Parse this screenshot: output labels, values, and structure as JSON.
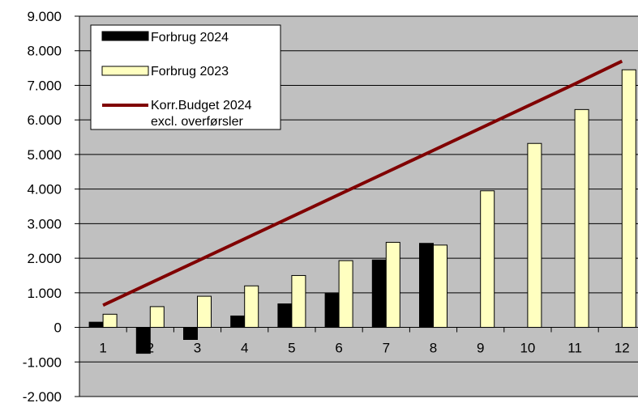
{
  "chart_data": {
    "type": "bar",
    "title": "",
    "xlabel": "",
    "ylabel": "",
    "categories": [
      "1",
      "2",
      "3",
      "4",
      "5",
      "6",
      "7",
      "8",
      "9",
      "10",
      "11",
      "12"
    ],
    "y_tick_labels": [
      "-2.000",
      "-1.000",
      "0",
      "1.000",
      "2.000",
      "3.000",
      "4.000",
      "5.000",
      "6.000",
      "7.000",
      "8.000",
      "9.000"
    ],
    "ylim": [
      -2000,
      9000
    ],
    "grid": true,
    "legend_position": "top-left",
    "plot_background": "#c0c0c0",
    "series": [
      {
        "name": "Forbrug 2024",
        "type": "bar",
        "color": "#000000",
        "values": [
          150,
          -750,
          -350,
          330,
          680,
          980,
          1950,
          2430,
          null,
          null,
          null,
          null
        ]
      },
      {
        "name": "Forbrug 2023",
        "type": "bar",
        "color": "#ffffc0",
        "values": [
          380,
          600,
          900,
          1200,
          1500,
          1930,
          2460,
          2380,
          3950,
          5320,
          6300,
          7450
        ]
      },
      {
        "name_lines": [
          "Korr.Budget 2024",
          "excl. overførsler"
        ],
        "type": "line",
        "color": "#800000",
        "values": [
          640,
          1280,
          1920,
          2560,
          3200,
          3840,
          4480,
          5120,
          5760,
          6400,
          7040,
          7700
        ]
      }
    ]
  }
}
